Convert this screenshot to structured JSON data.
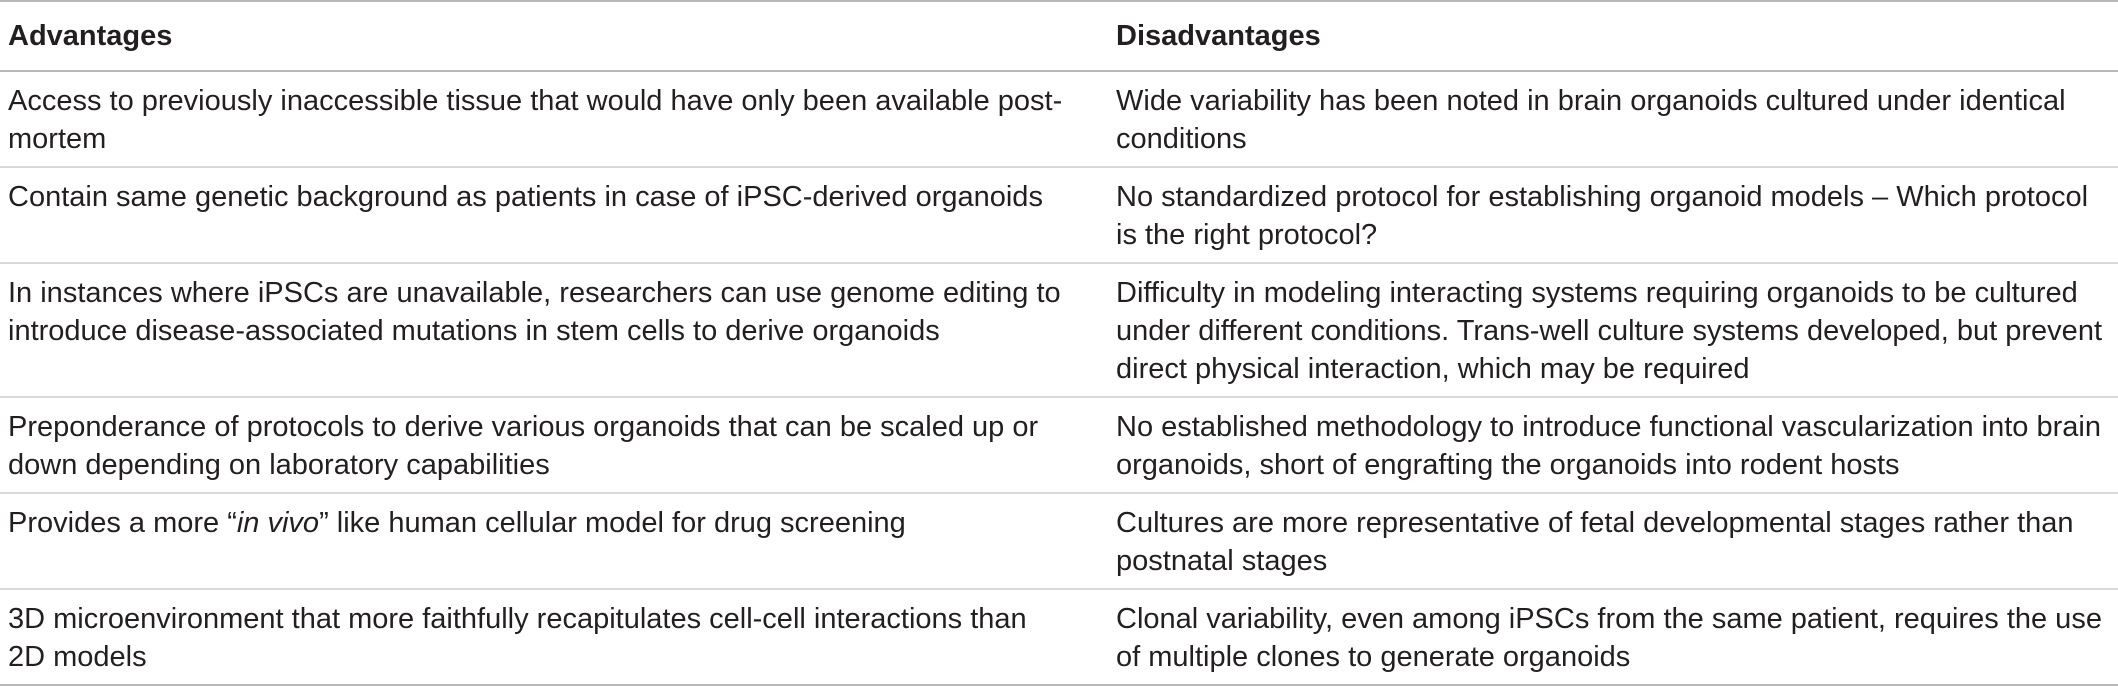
{
  "table": {
    "headers": [
      "Advantages",
      "Disadvantages"
    ],
    "rows": [
      {
        "advantage": "Access to previously inaccessible tissue that would have only been available post-mortem",
        "disadvantage": "Wide variability has been noted in brain organoids cultured under identical conditions"
      },
      {
        "advantage": "Contain same genetic background as patients in case of iPSC-derived organoids",
        "disadvantage": "No standardized protocol for establishing organoid models – Which protocol is the right protocol?"
      },
      {
        "advantage": "In instances where iPSCs are unavailable, researchers can use genome editing to introduce disease-associated mutations in stem cells to derive organoids",
        "disadvantage": "Difficulty in modeling interacting systems requiring organoids to be cultured under different conditions. Trans-well culture systems developed, but prevent direct physical interaction, which may be required"
      },
      {
        "advantage": "Preponderance of protocols to derive various organoids that can be scaled up or down depending on laboratory capabilities",
        "disadvantage": "No established methodology to introduce functional vascularization into brain organoids, short of engrafting the organoids into rodent hosts"
      },
      {
        "advantage_parts": {
          "before": "Provides a more “",
          "italic": "in vivo",
          "after": "” like human cellular model for drug screening"
        },
        "disadvantage": "Cultures are more representative of fetal developmental stages rather than postnatal stages"
      },
      {
        "advantage": "3D microenvironment that more faithfully recapitulates cell-cell interactions than 2D models",
        "disadvantage": "Clonal variability, even among iPSCs from the same patient, requires the use of multiple clones to generate organoids"
      }
    ]
  }
}
